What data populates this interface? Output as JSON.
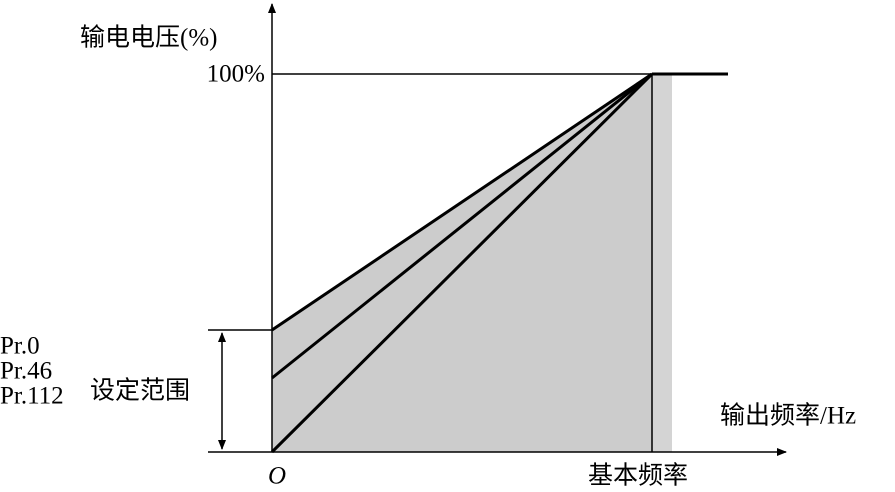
{
  "axes": {
    "y_label": "输电电压(%)",
    "y_top": "100%",
    "x_label": "输出频率/Hz",
    "origin": "O",
    "x_base": "基本频率"
  },
  "range": {
    "params": [
      "Pr.0",
      "Pr.46",
      "Pr.112"
    ],
    "label": "设定范围"
  }
}
